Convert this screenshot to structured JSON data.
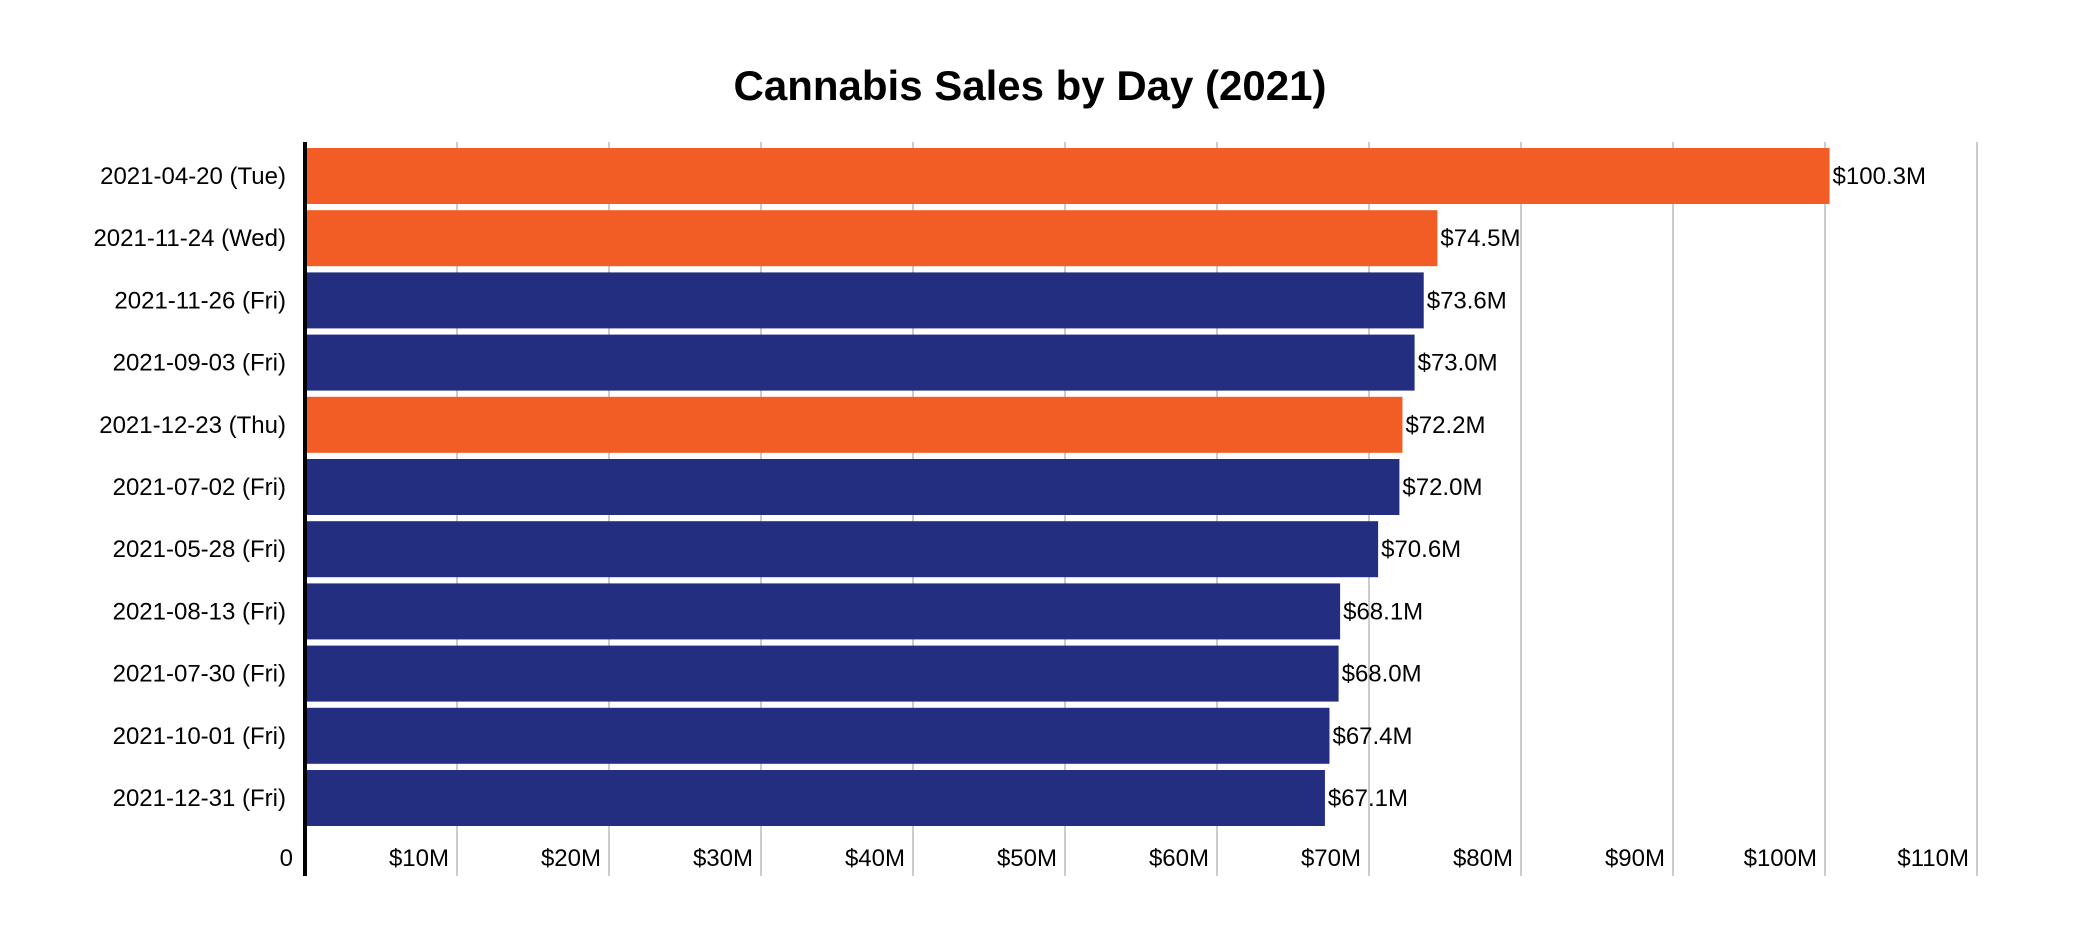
{
  "chart_data": {
    "type": "bar",
    "orientation": "horizontal",
    "title": "Cannabis Sales by Day (2021)",
    "xlabel": "",
    "ylabel": "",
    "xlim": [
      0,
      110
    ],
    "grid": true,
    "categories": [
      "2021-04-20 (Tue)",
      "2021-11-24 (Wed)",
      "2021-11-26 (Fri)",
      "2021-09-03 (Fri)",
      "2021-12-23 (Thu)",
      "2021-07-02 (Fri)",
      "2021-05-28 (Fri)",
      "2021-08-13 (Fri)",
      "2021-07-30 (Fri)",
      "2021-10-01 (Fri)",
      "2021-12-31 (Fri)"
    ],
    "values": [
      100.3,
      74.5,
      73.6,
      73.0,
      72.2,
      72.0,
      70.6,
      68.1,
      68.0,
      67.4,
      67.1
    ],
    "data_labels": [
      "$100.3M",
      "$74.5M",
      "$73.6M",
      "$73.0M",
      "$72.2M",
      "$72.0M",
      "$70.6M",
      "$68.1M",
      "$68.0M",
      "$67.4M",
      "$67.1M"
    ],
    "highlighted": [
      true,
      true,
      false,
      false,
      true,
      false,
      false,
      false,
      false,
      false,
      false
    ],
    "x_ticks": [
      0,
      10,
      20,
      30,
      40,
      50,
      60,
      70,
      80,
      90,
      100,
      110
    ],
    "x_tick_labels": [
      "0",
      "$10M",
      "$20M",
      "$30M",
      "$40M",
      "$50M",
      "$60M",
      "$70M",
      "$80M",
      "$90M",
      "$100M",
      "$110M"
    ],
    "colors": {
      "highlight": "#f15d24",
      "default": "#232e81",
      "grid": "#cccccc",
      "axis": "#000000"
    }
  }
}
